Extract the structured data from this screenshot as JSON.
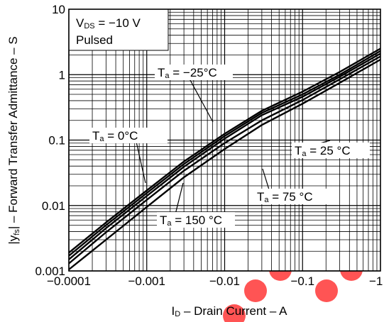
{
  "chart_data": {
    "type": "line",
    "xlabel": "ID – Drain Current – A",
    "xlabel_parts": {
      "main": "I",
      "sub": "D",
      "rest": " – Drain Current – A"
    },
    "ylabel": "|yfs| – Forward Transfer Admittance – S",
    "ylabel_parts": {
      "pre": "|y",
      "sub": "fs",
      "rest": "| – Forward Transfer Admittance – S"
    },
    "x_scale": "log",
    "y_scale": "log",
    "xlim": [
      -0.0001,
      -1
    ],
    "ylim": [
      0.001,
      10
    ],
    "x_ticks": [
      "−0.0001",
      "−0.001",
      "−0.01",
      "−0.1",
      "−1"
    ],
    "y_ticks": [
      "10",
      "1",
      "0.1",
      "0.01",
      "0.001"
    ],
    "grid": true,
    "legend_box": {
      "line1_pre": "V",
      "line1_sub": "DS",
      "line1_rest": " = −10 V",
      "line2": "Pulsed"
    },
    "series": [
      {
        "name": "Ta = −25°C",
        "x": [
          -0.0001,
          -0.0003,
          -0.001,
          -0.003,
          -0.01,
          -0.03,
          -0.1,
          -0.3,
          -1
        ],
        "y": [
          0.0019,
          0.0055,
          0.017,
          0.047,
          0.125,
          0.28,
          0.55,
          1.1,
          2.5
        ]
      },
      {
        "name": "Ta = 0°C",
        "x": [
          -0.0001,
          -0.0003,
          -0.001,
          -0.003,
          -0.01,
          -0.03,
          -0.1,
          -0.3,
          -1
        ],
        "y": [
          0.0017,
          0.005,
          0.0155,
          0.043,
          0.115,
          0.26,
          0.5,
          1.0,
          2.3
        ]
      },
      {
        "name": "Ta = 25 °C",
        "x": [
          -0.0001,
          -0.0003,
          -0.001,
          -0.003,
          -0.01,
          -0.03,
          -0.1,
          -0.3,
          -1
        ],
        "y": [
          0.0015,
          0.0045,
          0.014,
          0.039,
          0.105,
          0.24,
          0.46,
          0.93,
          2.1
        ]
      },
      {
        "name": "Ta = 75 °C",
        "x": [
          -0.0001,
          -0.0003,
          -0.001,
          -0.003,
          -0.01,
          -0.03,
          -0.1,
          -0.3,
          -1
        ],
        "y": [
          0.0013,
          0.0039,
          0.0122,
          0.034,
          0.09,
          0.2,
          0.41,
          0.85,
          1.9
        ]
      },
      {
        "name": "Ta = 150 °C",
        "x": [
          -0.0001,
          -0.0003,
          -0.001,
          -0.003,
          -0.01,
          -0.03,
          -0.1,
          -0.3,
          -1
        ],
        "y": [
          0.00105,
          0.003,
          0.0095,
          0.027,
          0.073,
          0.17,
          0.36,
          0.75,
          1.7
        ]
      }
    ],
    "annotations": [
      {
        "series": 0,
        "pre": "T",
        "sub": "a",
        "rest": " = −25°C"
      },
      {
        "series": 1,
        "pre": "T",
        "sub": "a",
        "rest": " = 0°C"
      },
      {
        "series": 2,
        "pre": "T",
        "sub": "a",
        "rest": " = 25 °C"
      },
      {
        "series": 3,
        "pre": "T",
        "sub": "a",
        "rest": " = 75 °C"
      },
      {
        "series": 4,
        "pre": "T",
        "sub": "a",
        "rest": " = 150 °C"
      }
    ],
    "line_color": "#000000",
    "grid_color": "#000000",
    "watermark_color": "#ff2020"
  }
}
